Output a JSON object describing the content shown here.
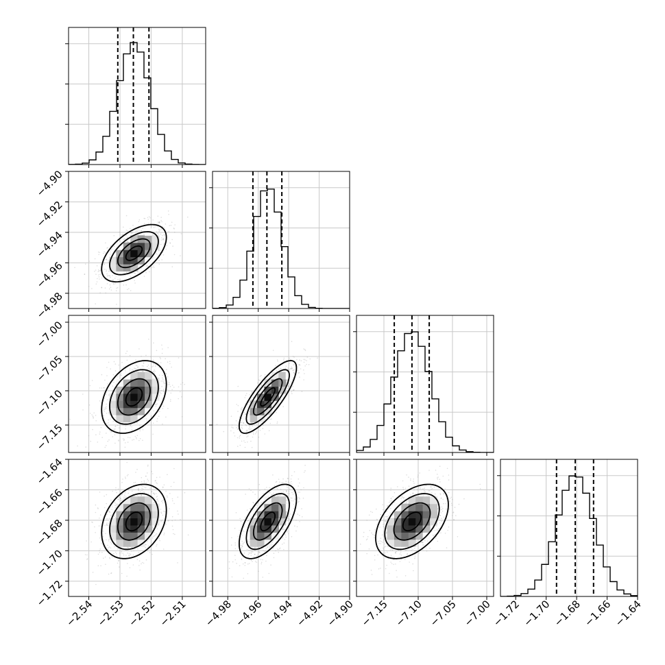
{
  "chart_data": {
    "type": "corner",
    "grid": true,
    "colors": {
      "density": "#000000",
      "scatter": "#9e9e9e",
      "grid": "#c8c8c8"
    },
    "parameters": [
      {
        "mean": -2.5255,
        "std": 0.0052,
        "range": [
          -2.5465,
          -2.5025
        ],
        "ticks": [
          -2.54,
          -2.53,
          -2.52,
          -2.51
        ],
        "tick_labels": [
          "−2.54",
          "−2.53",
          "−2.52",
          "−2.51"
        ],
        "quantiles": [
          -2.5307,
          -2.5257,
          -2.5207
        ]
      },
      {
        "mean": -4.9537,
        "std": 0.0094,
        "range": [
          -4.99,
          -4.9
        ],
        "ticks": [
          -4.98,
          -4.96,
          -4.94,
          -4.92,
          -4.9
        ],
        "tick_labels": [
          "−4.98",
          "−4.96",
          "−4.94",
          "−4.92",
          "−4.90"
        ],
        "quantiles": [
          -4.9635,
          -4.9543,
          -4.9445
        ]
      },
      {
        "mean": -7.109,
        "std": 0.0265,
        "range": [
          -7.19,
          -6.99
        ],
        "ticks": [
          -7.15,
          -7.1,
          -7.05,
          -7.0
        ],
        "tick_labels": [
          "−7.15",
          "−7.10",
          "−7.05",
          "−7.00"
        ],
        "quantiles": [
          -7.1349,
          -7.1091,
          -7.0839
        ]
      },
      {
        "mean": -1.6808,
        "std": 0.0122,
        "range": [
          -1.73,
          -1.64
        ],
        "ticks": [
          -1.72,
          -1.7,
          -1.68,
          -1.66,
          -1.64
        ],
        "tick_labels": [
          "−1.72",
          "−1.70",
          "−1.68",
          "−1.66",
          "−1.64"
        ],
        "quantiles": [
          -1.6932,
          -1.6809,
          -1.6689
        ]
      }
    ],
    "correlations": [
      [
        1,
        0.55,
        0.35,
        0.3
      ],
      [
        0.55,
        1,
        0.8,
        0.6
      ],
      [
        0.35,
        0.8,
        1,
        0.45
      ],
      [
        0.3,
        0.6,
        0.45,
        1
      ]
    ],
    "contour_levels_sigma": [
      0.5,
      1.0,
      1.5,
      2.0
    ],
    "histogram_bins": 20
  }
}
